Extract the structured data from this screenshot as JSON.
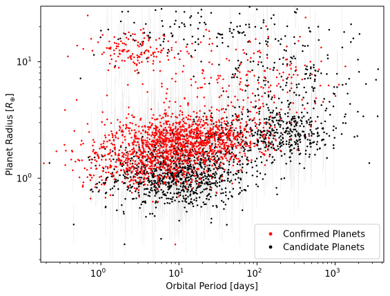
{
  "chart_data": {
    "type": "scatter",
    "xlabel": "Orbital Period [days]",
    "ylabel": "Planet Radius [R⊕]",
    "ylabel_parts": {
      "prefix": "Planet Radius [",
      "symbol": "R",
      "subscript": "⊕",
      "suffix": "]"
    },
    "xscale": "log",
    "yscale": "log",
    "xlim": [
      0.17,
      4200
    ],
    "ylim": [
      0.19,
      30
    ],
    "xticks": [
      {
        "value": 1,
        "base": "10",
        "exp": "0"
      },
      {
        "value": 10,
        "base": "10",
        "exp": "1"
      },
      {
        "value": 100,
        "base": "10",
        "exp": "2"
      },
      {
        "value": 1000,
        "base": "10",
        "exp": "3"
      }
    ],
    "yticks": [
      {
        "value": 1,
        "base": "10",
        "exp": "0"
      },
      {
        "value": 10,
        "base": "10",
        "exp": "1"
      }
    ],
    "grid": false,
    "legend_placement": "lower-right",
    "series": [
      {
        "name": "Confirmed Planets",
        "color": "#ff0000",
        "clusters": [
          {
            "count": 1100,
            "x_log_mean": 1.12,
            "x_log_sd": 0.48,
            "y_log_mean": 0.33,
            "y_log_sd": 0.11
          },
          {
            "count": 480,
            "x_log_mean": 0.58,
            "x_log_sd": 0.42,
            "y_log_mean": 0.12,
            "y_log_sd": 0.11
          },
          {
            "count": 140,
            "x_log_mean": 0.5,
            "x_log_sd": 0.32,
            "y_log_mean": 1.1,
            "y_log_sd": 0.09
          },
          {
            "count": 150,
            "x_log_mean": 1.55,
            "x_log_sd": 0.6,
            "y_log_mean": 0.72,
            "y_log_sd": 0.2
          },
          {
            "count": 60,
            "x_log_mean": 2.4,
            "x_log_sd": 0.35,
            "y_log_mean": 0.9,
            "y_log_sd": 0.2
          }
        ],
        "outliers": [
          {
            "x": 9,
            "y": 0.27
          },
          {
            "x": 0.27,
            "y": 1.7
          },
          {
            "x": 0.68,
            "y": 25
          }
        ]
      },
      {
        "name": "Candidate Planets",
        "color": "#000000",
        "clusters": [
          {
            "count": 900,
            "x_log_mean": 1.0,
            "x_log_sd": 0.45,
            "y_log_mean": 0.02,
            "y_log_sd": 0.14
          },
          {
            "count": 420,
            "x_log_mean": 2.25,
            "x_log_sd": 0.45,
            "y_log_mean": 0.38,
            "y_log_sd": 0.11
          },
          {
            "count": 200,
            "x_log_mean": 2.4,
            "x_log_sd": 0.5,
            "y_log_mean": 0.85,
            "y_log_sd": 0.25
          },
          {
            "count": 120,
            "x_log_mean": 1.3,
            "x_log_sd": 0.7,
            "y_log_mean": 1.25,
            "y_log_sd": 0.13
          }
        ],
        "outliers": [
          {
            "x": 2300,
            "y": 3.4
          },
          {
            "x": 1600,
            "y": 21
          },
          {
            "x": 0.22,
            "y": 1.35
          },
          {
            "x": 0.45,
            "y": 0.4
          },
          {
            "x": 0.55,
            "y": 7.2
          }
        ]
      }
    ]
  }
}
